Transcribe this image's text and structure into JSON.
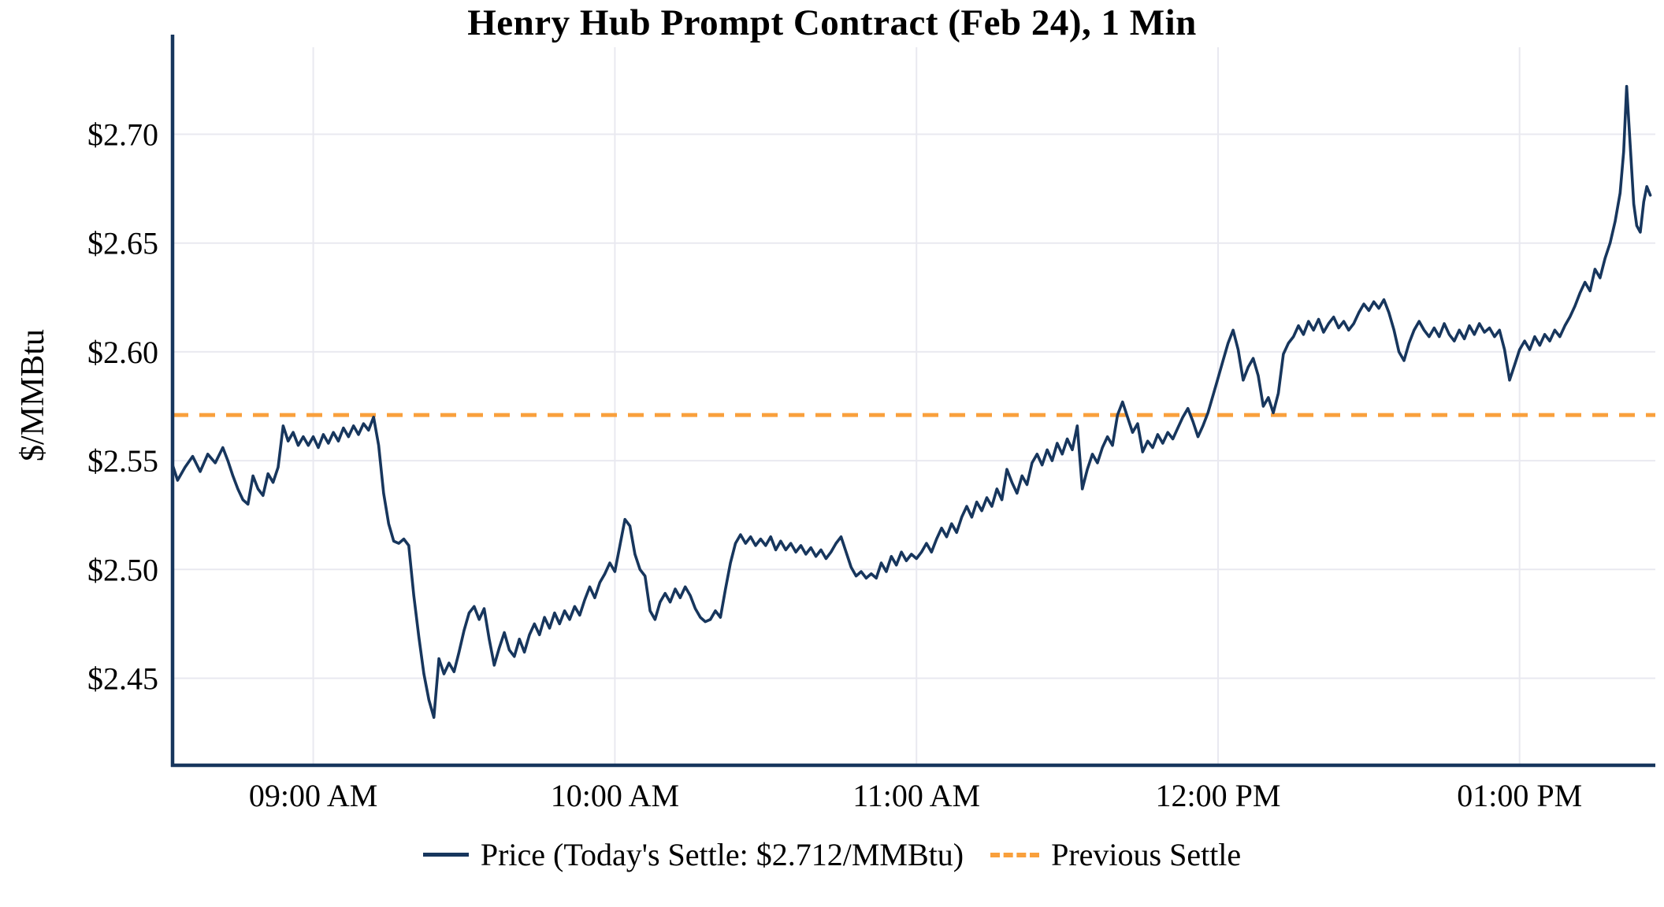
{
  "title": "Henry Hub Prompt Contract (Feb 24), 1 Min",
  "chart_data": {
    "type": "line",
    "title": "Henry Hub Prompt Contract (Feb 24), 1 Min",
    "ylabel": "$/MMBtu",
    "xlabel": "",
    "x_unit": "minutes since 08:30 AM",
    "xlim": [
      2,
      297
    ],
    "ylim": [
      2.41,
      2.74
    ],
    "grid": true,
    "legend_position": "bottom",
    "legend": [
      "Price (Today's Settle: $2.712/MMBtu)",
      "Previous Settle"
    ],
    "todays_settle": 2.712,
    "previous_settle": 2.571,
    "colors": {
      "price": "#17365D",
      "previous_settle": "#F9A03C",
      "axis": "#17365D",
      "grid": "#E9E9F0"
    },
    "x_ticks": [
      {
        "t": 30,
        "label": "09:00 AM"
      },
      {
        "t": 90,
        "label": "10:00 AM"
      },
      {
        "t": 150,
        "label": "11:00 AM"
      },
      {
        "t": 210,
        "label": "12:00 PM"
      },
      {
        "t": 270,
        "label": "01:00 PM"
      }
    ],
    "y_ticks": [
      {
        "v": 2.45,
        "label": "$2.45"
      },
      {
        "v": 2.5,
        "label": "$2.50"
      },
      {
        "v": 2.55,
        "label": "$2.55"
      },
      {
        "v": 2.6,
        "label": "$2.60"
      },
      {
        "v": 2.65,
        "label": "$2.65"
      },
      {
        "v": 2.7,
        "label": "$2.70"
      }
    ],
    "series": [
      {
        "name": "Price",
        "type": "line",
        "style": "solid",
        "color": "#17365D",
        "points": [
          [
            2,
            2.548
          ],
          [
            3,
            2.541
          ],
          [
            4.5,
            2.547
          ],
          [
            6,
            2.552
          ],
          [
            7.5,
            2.545
          ],
          [
            9,
            2.553
          ],
          [
            10.5,
            2.549
          ],
          [
            12,
            2.556
          ],
          [
            13,
            2.55
          ],
          [
            14,
            2.543
          ],
          [
            15,
            2.537
          ],
          [
            16,
            2.532
          ],
          [
            17,
            2.53
          ],
          [
            18,
            2.543
          ],
          [
            19,
            2.537
          ],
          [
            20,
            2.534
          ],
          [
            21,
            2.544
          ],
          [
            22,
            2.54
          ],
          [
            23,
            2.547
          ],
          [
            24,
            2.566
          ],
          [
            25,
            2.559
          ],
          [
            26,
            2.563
          ],
          [
            27,
            2.557
          ],
          [
            28,
            2.561
          ],
          [
            29,
            2.557
          ],
          [
            30,
            2.561
          ],
          [
            31,
            2.556
          ],
          [
            32,
            2.562
          ],
          [
            33,
            2.558
          ],
          [
            34,
            2.563
          ],
          [
            35,
            2.559
          ],
          [
            36,
            2.565
          ],
          [
            37,
            2.561
          ],
          [
            38,
            2.566
          ],
          [
            39,
            2.562
          ],
          [
            40,
            2.567
          ],
          [
            41,
            2.564
          ],
          [
            42,
            2.57
          ],
          [
            43,
            2.557
          ],
          [
            44,
            2.535
          ],
          [
            45,
            2.521
          ],
          [
            46,
            2.513
          ],
          [
            47,
            2.512
          ],
          [
            48,
            2.514
          ],
          [
            49,
            2.511
          ],
          [
            50,
            2.488
          ],
          [
            51,
            2.469
          ],
          [
            52,
            2.452
          ],
          [
            53,
            2.44
          ],
          [
            54,
            2.432
          ],
          [
            55,
            2.459
          ],
          [
            56,
            2.452
          ],
          [
            57,
            2.457
          ],
          [
            58,
            2.453
          ],
          [
            59,
            2.462
          ],
          [
            60,
            2.472
          ],
          [
            61,
            2.48
          ],
          [
            62,
            2.483
          ],
          [
            63,
            2.477
          ],
          [
            64,
            2.482
          ],
          [
            65,
            2.468
          ],
          [
            66,
            2.456
          ],
          [
            67,
            2.464
          ],
          [
            68,
            2.471
          ],
          [
            69,
            2.463
          ],
          [
            70,
            2.46
          ],
          [
            71,
            2.468
          ],
          [
            72,
            2.462
          ],
          [
            73,
            2.47
          ],
          [
            74,
            2.475
          ],
          [
            75,
            2.47
          ],
          [
            76,
            2.478
          ],
          [
            77,
            2.473
          ],
          [
            78,
            2.48
          ],
          [
            79,
            2.475
          ],
          [
            80,
            2.481
          ],
          [
            81,
            2.477
          ],
          [
            82,
            2.483
          ],
          [
            83,
            2.479
          ],
          [
            84,
            2.486
          ],
          [
            85,
            2.492
          ],
          [
            86,
            2.487
          ],
          [
            87,
            2.494
          ],
          [
            88,
            2.498
          ],
          [
            89,
            2.503
          ],
          [
            90,
            2.499
          ],
          [
            91,
            2.511
          ],
          [
            92,
            2.523
          ],
          [
            93,
            2.52
          ],
          [
            94,
            2.507
          ],
          [
            95,
            2.5
          ],
          [
            96,
            2.497
          ],
          [
            97,
            2.481
          ],
          [
            98,
            2.477
          ],
          [
            99,
            2.485
          ],
          [
            100,
            2.489
          ],
          [
            101,
            2.485
          ],
          [
            102,
            2.491
          ],
          [
            103,
            2.487
          ],
          [
            104,
            2.492
          ],
          [
            105,
            2.488
          ],
          [
            106,
            2.482
          ],
          [
            107,
            2.478
          ],
          [
            108,
            2.476
          ],
          [
            109,
            2.477
          ],
          [
            110,
            2.481
          ],
          [
            111,
            2.478
          ],
          [
            112,
            2.491
          ],
          [
            113,
            2.503
          ],
          [
            114,
            2.512
          ],
          [
            115,
            2.516
          ],
          [
            116,
            2.512
          ],
          [
            117,
            2.515
          ],
          [
            118,
            2.511
          ],
          [
            119,
            2.514
          ],
          [
            120,
            2.511
          ],
          [
            121,
            2.515
          ],
          [
            122,
            2.509
          ],
          [
            123,
            2.513
          ],
          [
            124,
            2.509
          ],
          [
            125,
            2.512
          ],
          [
            126,
            2.508
          ],
          [
            127,
            2.511
          ],
          [
            128,
            2.507
          ],
          [
            129,
            2.51
          ],
          [
            130,
            2.506
          ],
          [
            131,
            2.509
          ],
          [
            132,
            2.505
          ],
          [
            133,
            2.508
          ],
          [
            134,
            2.512
          ],
          [
            135,
            2.515
          ],
          [
            136,
            2.508
          ],
          [
            137,
            2.501
          ],
          [
            138,
            2.497
          ],
          [
            139,
            2.499
          ],
          [
            140,
            2.496
          ],
          [
            141,
            2.498
          ],
          [
            142,
            2.496
          ],
          [
            143,
            2.503
          ],
          [
            144,
            2.499
          ],
          [
            145,
            2.506
          ],
          [
            146,
            2.502
          ],
          [
            147,
            2.508
          ],
          [
            148,
            2.504
          ],
          [
            149,
            2.507
          ],
          [
            150,
            2.505
          ],
          [
            151,
            2.508
          ],
          [
            152,
            2.512
          ],
          [
            153,
            2.508
          ],
          [
            154,
            2.514
          ],
          [
            155,
            2.519
          ],
          [
            156,
            2.515
          ],
          [
            157,
            2.521
          ],
          [
            158,
            2.517
          ],
          [
            159,
            2.524
          ],
          [
            160,
            2.529
          ],
          [
            161,
            2.524
          ],
          [
            162,
            2.531
          ],
          [
            163,
            2.527
          ],
          [
            164,
            2.533
          ],
          [
            165,
            2.529
          ],
          [
            166,
            2.537
          ],
          [
            167,
            2.532
          ],
          [
            168,
            2.546
          ],
          [
            169,
            2.54
          ],
          [
            170,
            2.535
          ],
          [
            171,
            2.543
          ],
          [
            172,
            2.539
          ],
          [
            173,
            2.549
          ],
          [
            174,
            2.553
          ],
          [
            175,
            2.548
          ],
          [
            176,
            2.555
          ],
          [
            177,
            2.55
          ],
          [
            178,
            2.558
          ],
          [
            179,
            2.553
          ],
          [
            180,
            2.56
          ],
          [
            181,
            2.555
          ],
          [
            182,
            2.566
          ],
          [
            183,
            2.537
          ],
          [
            184,
            2.546
          ],
          [
            185,
            2.553
          ],
          [
            186,
            2.549
          ],
          [
            187,
            2.556
          ],
          [
            188,
            2.561
          ],
          [
            189,
            2.557
          ],
          [
            190,
            2.571
          ],
          [
            191,
            2.577
          ],
          [
            192,
            2.57
          ],
          [
            193,
            2.563
          ],
          [
            194,
            2.567
          ],
          [
            195,
            2.554
          ],
          [
            196,
            2.559
          ],
          [
            197,
            2.556
          ],
          [
            198,
            2.562
          ],
          [
            199,
            2.558
          ],
          [
            200,
            2.563
          ],
          [
            201,
            2.56
          ],
          [
            202,
            2.565
          ],
          [
            203,
            2.57
          ],
          [
            204,
            2.574
          ],
          [
            205,
            2.568
          ],
          [
            206,
            2.561
          ],
          [
            207,
            2.566
          ],
          [
            208,
            2.572
          ],
          [
            209,
            2.58
          ],
          [
            210,
            2.588
          ],
          [
            211,
            2.596
          ],
          [
            212,
            2.604
          ],
          [
            213,
            2.61
          ],
          [
            214,
            2.601
          ],
          [
            215,
            2.587
          ],
          [
            216,
            2.593
          ],
          [
            217,
            2.597
          ],
          [
            218,
            2.589
          ],
          [
            219,
            2.575
          ],
          [
            220,
            2.579
          ],
          [
            221,
            2.572
          ],
          [
            222,
            2.581
          ],
          [
            223,
            2.599
          ],
          [
            224,
            2.604
          ],
          [
            225,
            2.607
          ],
          [
            226,
            2.612
          ],
          [
            227,
            2.608
          ],
          [
            228,
            2.614
          ],
          [
            229,
            2.61
          ],
          [
            230,
            2.615
          ],
          [
            231,
            2.609
          ],
          [
            232,
            2.613
          ],
          [
            233,
            2.616
          ],
          [
            234,
            2.611
          ],
          [
            235,
            2.614
          ],
          [
            236,
            2.61
          ],
          [
            237,
            2.613
          ],
          [
            238,
            2.618
          ],
          [
            239,
            2.622
          ],
          [
            240,
            2.619
          ],
          [
            241,
            2.623
          ],
          [
            242,
            2.62
          ],
          [
            243,
            2.624
          ],
          [
            244,
            2.618
          ],
          [
            245,
            2.61
          ],
          [
            246,
            2.6
          ],
          [
            247,
            2.596
          ],
          [
            248,
            2.604
          ],
          [
            249,
            2.61
          ],
          [
            250,
            2.614
          ],
          [
            251,
            2.61
          ],
          [
            252,
            2.607
          ],
          [
            253,
            2.611
          ],
          [
            254,
            2.607
          ],
          [
            255,
            2.613
          ],
          [
            256,
            2.608
          ],
          [
            257,
            2.605
          ],
          [
            258,
            2.61
          ],
          [
            259,
            2.606
          ],
          [
            260,
            2.612
          ],
          [
            261,
            2.608
          ],
          [
            262,
            2.613
          ],
          [
            263,
            2.609
          ],
          [
            264,
            2.611
          ],
          [
            265,
            2.607
          ],
          [
            266,
            2.61
          ],
          [
            267,
            2.601
          ],
          [
            268,
            2.587
          ],
          [
            269,
            2.594
          ],
          [
            270,
            2.601
          ],
          [
            271,
            2.605
          ],
          [
            272,
            2.601
          ],
          [
            273,
            2.607
          ],
          [
            274,
            2.603
          ],
          [
            275,
            2.608
          ],
          [
            276,
            2.605
          ],
          [
            277,
            2.61
          ],
          [
            278,
            2.607
          ],
          [
            279,
            2.612
          ],
          [
            280,
            2.616
          ],
          [
            281,
            2.621
          ],
          [
            282,
            2.627
          ],
          [
            283,
            2.632
          ],
          [
            284,
            2.628
          ],
          [
            285,
            2.638
          ],
          [
            286,
            2.634
          ],
          [
            287,
            2.643
          ],
          [
            288,
            2.65
          ],
          [
            289,
            2.66
          ],
          [
            290,
            2.673
          ],
          [
            290.7,
            2.692
          ],
          [
            291.3,
            2.722
          ],
          [
            292,
            2.695
          ],
          [
            292.7,
            2.668
          ],
          [
            293.3,
            2.658
          ],
          [
            294,
            2.655
          ],
          [
            294.7,
            2.669
          ],
          [
            295.3,
            2.676
          ],
          [
            296,
            2.672
          ]
        ]
      },
      {
        "name": "Previous Settle",
        "type": "hline",
        "style": "dashed",
        "color": "#F9A03C",
        "value": 2.571
      }
    ]
  }
}
